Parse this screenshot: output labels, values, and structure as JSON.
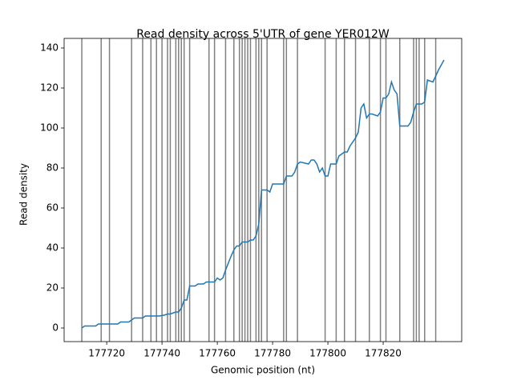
{
  "chart_data": {
    "type": "line",
    "title": "Read density across 5'UTR of gene YER012W",
    "x_label": "Genomic position (nt)",
    "y_label": "Read density",
    "x": [
      177711,
      177712,
      177716,
      177717,
      177724,
      177725,
      177728,
      177730,
      177733,
      177734,
      177739,
      177741,
      177742,
      177743,
      177745,
      177746,
      177747,
      177748,
      177749,
      177750,
      177752,
      177753,
      177755,
      177756,
      177759,
      177760,
      177761,
      177762,
      177763,
      177765,
      177766,
      177767,
      177768,
      177769,
      177771,
      177772,
      177773,
      177774,
      177775,
      177776,
      177778,
      177779,
      177780,
      177784,
      177785,
      177787,
      177788,
      177789,
      177790,
      177793,
      177794,
      177795,
      177796,
      177797,
      177798,
      177799,
      177800,
      177801,
      177803,
      177804,
      177805,
      177806,
      177807,
      177808,
      177810,
      177811,
      177812,
      177813,
      177814,
      177815,
      177816,
      177818,
      177819,
      177820,
      177821,
      177822,
      177823,
      177824,
      177825,
      177826,
      177829,
      177830,
      177831,
      177832,
      177834,
      177835,
      177836,
      177838,
      177839,
      177840,
      177842
    ],
    "values": [
      0,
      1,
      1,
      2,
      2,
      3,
      3,
      5,
      5,
      6,
      6,
      6.5,
      7,
      7,
      8,
      8,
      10,
      14,
      14,
      21,
      21,
      22,
      22,
      23,
      23,
      25,
      24,
      25,
      29,
      36,
      39,
      41,
      41,
      43,
      43,
      44,
      44,
      46,
      52,
      69,
      69,
      68,
      72,
      72,
      76,
      76,
      78,
      82,
      83,
      82,
      84,
      84,
      82,
      78,
      80,
      76,
      76,
      82,
      82,
      86,
      87,
      88,
      88,
      91,
      95,
      98,
      110,
      112,
      105,
      107,
      107,
      106,
      108,
      115,
      115,
      117,
      123,
      119,
      117,
      101,
      101,
      103,
      108,
      112,
      112,
      113,
      124,
      123,
      126,
      129,
      134
    ],
    "color": "#1f77b4",
    "vlines": [
      177711,
      177718,
      177721,
      177729,
      177733,
      177736,
      177738,
      177740,
      177742,
      177743,
      177745,
      177746,
      177747,
      177748,
      177750,
      177757,
      177759,
      177763,
      177766,
      177768,
      177769,
      177770,
      177771,
      177772,
      177774,
      177775,
      177776,
      177778,
      177784,
      177785,
      177789,
      177799,
      177803,
      177806,
      177810,
      177815,
      177819,
      177821,
      177826,
      177831,
      177832,
      177833,
      177835,
      177839
    ],
    "vline_color": "#808080",
    "xlim": [
      177704.6,
      177848.4
    ],
    "ylim": [
      -6.8,
      144.8
    ],
    "xticks": [
      177720,
      177740,
      177760,
      177780,
      177800,
      177820
    ],
    "yticks": [
      0,
      20,
      40,
      60,
      80,
      100,
      120,
      140
    ]
  }
}
